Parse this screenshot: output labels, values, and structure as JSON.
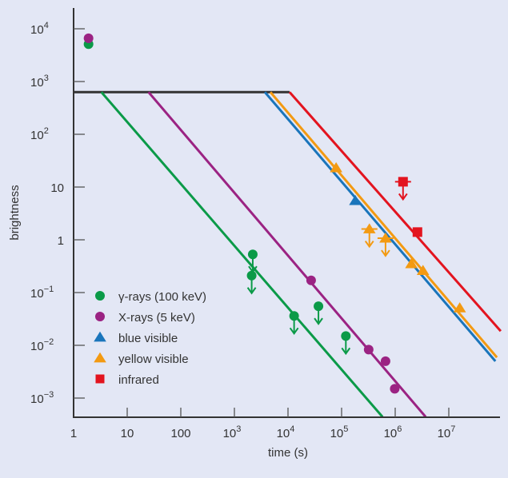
{
  "chart_data": {
    "type": "scatter",
    "title": "",
    "xlabel": "time (s)",
    "ylabel": "brightness",
    "xscale": "log",
    "yscale": "log",
    "xlim": [
      1,
      90000000.0
    ],
    "ylim": [
      0.00044,
      25000
    ],
    "grid": false,
    "legend_position": "bottom-left",
    "background": "#e3e7f5",
    "x_ticks": [
      {
        "value": 1,
        "base": "1",
        "exp": ""
      },
      {
        "value": 10,
        "base": "10",
        "exp": ""
      },
      {
        "value": 100,
        "base": "100",
        "exp": ""
      },
      {
        "value": 1000,
        "base": "10",
        "exp": "3"
      },
      {
        "value": 10000,
        "base": "10",
        "exp": "4"
      },
      {
        "value": 100000,
        "base": "10",
        "exp": "5"
      },
      {
        "value": 1000000,
        "base": "10",
        "exp": "6"
      },
      {
        "value": 10000000,
        "base": "10",
        "exp": "7"
      }
    ],
    "y_ticks": [
      {
        "value": 10000,
        "base": "10",
        "exp": "4"
      },
      {
        "value": 1000,
        "base": "10",
        "exp": "3"
      },
      {
        "value": 100,
        "base": "10",
        "exp": "2"
      },
      {
        "value": 10,
        "base": "10",
        "exp": ""
      },
      {
        "value": 1,
        "base": "1",
        "exp": ""
      },
      {
        "value": 0.1,
        "base": "10",
        "exp": "−1"
      },
      {
        "value": 0.01,
        "base": "10",
        "exp": "−2"
      },
      {
        "value": 0.001,
        "base": "10",
        "exp": "−3"
      }
    ],
    "plateau_line": {
      "color": "#333333",
      "points": [
        [
          1,
          630
        ],
        [
          10700,
          630
        ]
      ]
    },
    "series": [
      {
        "name": "γ-rays (100 keV)",
        "marker": "circle",
        "color": "#0b9a48",
        "line": [
          [
            3.3,
            630
          ],
          [
            580000,
            0.00044
          ]
        ],
        "points": [
          {
            "x": 1.9,
            "y": 5100,
            "upper_limit": false
          },
          {
            "x": 2200,
            "y": 0.53,
            "upper_limit": true
          },
          {
            "x": 2100,
            "y": 0.21,
            "upper_limit": true
          },
          {
            "x": 13000,
            "y": 0.036,
            "upper_limit": true
          },
          {
            "x": 37000,
            "y": 0.055,
            "upper_limit": true
          },
          {
            "x": 120000,
            "y": 0.015,
            "upper_limit": true
          }
        ]
      },
      {
        "name": "X-rays (5 keV)",
        "marker": "circle",
        "color": "#9b2383",
        "line": [
          [
            25,
            630
          ],
          [
            3700000,
            0.00044
          ]
        ],
        "points": [
          {
            "x": 1.9,
            "y": 6600,
            "upper_limit": false
          },
          {
            "x": 27000,
            "y": 0.17,
            "upper_limit": false
          },
          {
            "x": 320000,
            "y": 0.0083,
            "upper_limit": false
          },
          {
            "x": 660000,
            "y": 0.005,
            "upper_limit": false
          },
          {
            "x": 980000,
            "y": 0.0015,
            "upper_limit": false
          }
        ]
      },
      {
        "name": "blue visible",
        "marker": "triangle",
        "color": "#1a75bb",
        "line": [
          [
            3700,
            630
          ],
          [
            74000000,
            0.005
          ]
        ],
        "points": [
          {
            "x": 180000,
            "y": 5.5,
            "upper_limit": false
          }
        ]
      },
      {
        "name": "yellow visible",
        "marker": "triangle",
        "color": "#f39a12",
        "line": [
          [
            4700,
            630
          ],
          [
            79000000,
            0.0059
          ]
        ],
        "points": [
          {
            "x": 79000,
            "y": 23,
            "upper_limit": false
          },
          {
            "x": 330000,
            "y": 1.6,
            "upper_limit": true
          },
          {
            "x": 660000,
            "y": 1.07,
            "upper_limit": true
          },
          {
            "x": 2000000,
            "y": 0.35,
            "upper_limit": false
          },
          {
            "x": 3300000,
            "y": 0.26,
            "upper_limit": false
          },
          {
            "x": 16000000,
            "y": 0.051,
            "upper_limit": false
          }
        ]
      },
      {
        "name": "infrared",
        "marker": "square",
        "color": "#e3141f",
        "line": [
          [
            10700,
            630
          ],
          [
            93000000,
            0.0186
          ]
        ],
        "points": [
          {
            "x": 1400000,
            "y": 12.6,
            "upper_limit": true
          },
          {
            "x": 2600000,
            "y": 1.4,
            "upper_limit": false
          }
        ]
      }
    ]
  }
}
